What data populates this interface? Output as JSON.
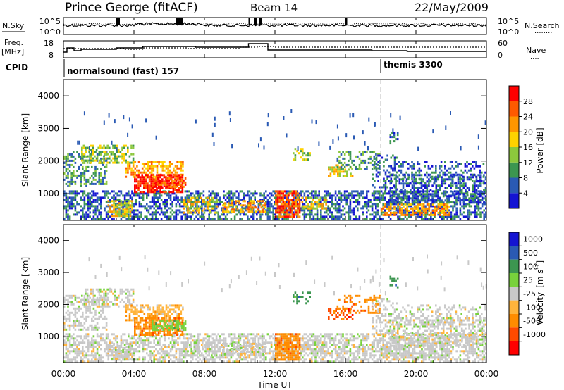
{
  "header": {
    "station": "Prince George (fitACF)",
    "beam": "Beam 14",
    "date": "22/May/2009"
  },
  "panels": {
    "nsky": {
      "left_label": "N.Sky",
      "right_label": "N.Search",
      "right_legend": "........",
      "ticks_left": [
        "10^5",
        "10^0"
      ],
      "ticks_right": [
        "10^5",
        "10^0"
      ]
    },
    "freq": {
      "left_label_1": "Freq.",
      "left_label_2": "[MHz]",
      "right_label": "Nave",
      "right_legend": "....",
      "ticks_left": [
        "18",
        "8"
      ],
      "ticks_right": [
        "60",
        "0"
      ]
    },
    "cpid": {
      "label": "CPID",
      "modes": [
        {
          "name": "normalsound (fast) 157",
          "start_hour": 0
        },
        {
          "name": "themis 3300",
          "start_hour": 18
        }
      ]
    }
  },
  "colors": {
    "power": [
      "#1414d2",
      "#2a5ab4",
      "#3c9650",
      "#8cc83c",
      "#ffd200",
      "#ff9600",
      "#ff5a00",
      "#ff0000"
    ],
    "velocity": [
      "#ff0000",
      "#ff4a00",
      "#ff8c00",
      "#ffb43c",
      "#c8c8c8",
      "#78d23c",
      "#3c9650",
      "#2a5ab4",
      "#1414d2"
    ],
    "ground_scatter": "#a0a0a0"
  },
  "chart_data": [
    {
      "type": "heatmap",
      "name": "power",
      "ylabel": "Slant Range [km]",
      "ylim": [
        180,
        4500
      ],
      "yticks": [
        "1000",
        "2000",
        "3000",
        "4000"
      ],
      "yticks_values": [
        1000,
        2000,
        3000,
        4000
      ],
      "colorbar_label": "Power [dB]",
      "colorbar_ticks": [
        "28",
        "24",
        "20",
        "16",
        "12",
        "8",
        "4"
      ],
      "colorbar_range": [
        0,
        32
      ]
    },
    {
      "type": "heatmap",
      "name": "velocity",
      "ylabel": "Slant Range [km]",
      "ylim": [
        180,
        4500
      ],
      "yticks": [
        "1000",
        "2000",
        "3000",
        "4000"
      ],
      "yticks_values": [
        1000,
        2000,
        3000,
        4000
      ],
      "colorbar_label": "Velocity",
      "colorbar_unit": "[m s",
      "colorbar_unit_exp": "-1",
      "colorbar_unit_end": "]",
      "colorbar_ticks": [
        "1000",
        "500",
        "100",
        "25",
        "-25",
        "-100",
        "-500",
        "-1000"
      ]
    }
  ],
  "xaxis": {
    "label": "Time UT",
    "ticks": [
      "00:00",
      "04:00",
      "08:00",
      "12:00",
      "16:00",
      "20:00",
      "00:00"
    ],
    "xlim": [
      0,
      24
    ]
  }
}
